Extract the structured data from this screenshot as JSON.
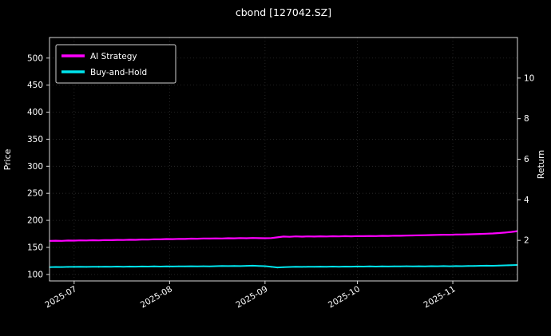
{
  "chart_data": {
    "type": "line",
    "title": "cbond [127042.SZ]",
    "ylabel_left": "Price",
    "ylabel_right": "Return",
    "xlim": [
      0,
      152
    ],
    "x_step": 2,
    "x_ticks": {
      "days": [
        8,
        39,
        70,
        100,
        131
      ],
      "labels": [
        "2025-07",
        "2025-08",
        "2025-09",
        "2025-10",
        "2025-11"
      ]
    },
    "price_ylim": [
      88,
      538
    ],
    "price_ticks": [
      100,
      150,
      200,
      250,
      300,
      350,
      400,
      450,
      500
    ],
    "return_ylim": [
      0,
      12
    ],
    "return_ticks": [
      2,
      4,
      6,
      8,
      10
    ],
    "grid": true,
    "legend_position": "upper-left",
    "series": [
      {
        "name": "AI Strategy",
        "color": "#ff00ff",
        "axis": "price",
        "values": [
          162.0,
          162.3,
          162.1,
          162.6,
          162.5,
          162.9,
          162.8,
          163.2,
          163.0,
          163.5,
          163.4,
          163.9,
          163.7,
          164.2,
          164.0,
          164.6,
          164.4,
          165.0,
          164.8,
          165.4,
          165.3,
          165.8,
          165.6,
          166.2,
          166.0,
          166.5,
          166.3,
          166.7,
          166.5,
          166.9,
          166.8,
          167.2,
          167.0,
          167.4,
          167.1,
          166.9,
          167.2,
          168.6,
          170.1,
          169.6,
          170.3,
          169.9,
          170.4,
          170.1,
          170.5,
          170.2,
          170.6,
          170.3,
          170.7,
          170.5,
          170.9,
          170.7,
          171.1,
          170.9,
          171.3,
          171.2,
          171.6,
          171.5,
          171.9,
          172.1,
          172.4,
          172.6,
          172.9,
          173.1,
          173.4,
          173.3,
          173.7,
          173.9,
          174.2,
          174.5,
          174.9,
          175.3,
          175.8,
          176.5,
          177.4,
          178.6,
          180.0
        ]
      },
      {
        "name": "Buy-and-Hold",
        "color": "#00e5ee",
        "axis": "price",
        "values": [
          113.5,
          113.8,
          113.6,
          114.0,
          113.9,
          114.2,
          114.0,
          114.3,
          114.1,
          114.4,
          114.2,
          114.5,
          114.3,
          114.6,
          114.4,
          114.7,
          114.5,
          114.8,
          114.6,
          114.9,
          114.7,
          115.0,
          114.8,
          115.1,
          114.9,
          115.2,
          115.0,
          115.3,
          115.6,
          115.4,
          115.8,
          115.5,
          115.9,
          116.2,
          115.8,
          115.3,
          114.2,
          112.9,
          113.4,
          113.8,
          114.1,
          113.9,
          114.3,
          114.1,
          114.4,
          114.2,
          114.5,
          114.3,
          114.6,
          114.4,
          114.7,
          114.5,
          114.8,
          114.6,
          114.9,
          114.7,
          115.0,
          114.8,
          115.1,
          114.9,
          115.2,
          115.0,
          115.3,
          115.1,
          115.4,
          115.2,
          115.5,
          115.3,
          115.6,
          115.8,
          116.0,
          116.2,
          116.0,
          116.4,
          116.7,
          117.0,
          117.5
        ]
      }
    ],
    "candles": {
      "color_up": "#00a651",
      "color_down": "#cf5030",
      "red_indices": [
        2,
        9,
        14,
        22,
        27,
        33,
        36,
        37,
        38,
        44,
        51,
        58,
        63,
        70,
        74
      ],
      "high": [
        115.0,
        114.6,
        115.3,
        114.9,
        116.1,
        114.8,
        115.4,
        115.0,
        116.0,
        115.2,
        115.1,
        115.5,
        114.9,
        116.2,
        115.0,
        115.6,
        115.2,
        116.3,
        115.1,
        115.7,
        115.3,
        116.4,
        115.2,
        115.8,
        115.4,
        116.5,
        115.3,
        115.9,
        116.8,
        115.6,
        117.0,
        115.8,
        117.2,
        117.5,
        116.4,
        116.0,
        115.2,
        114.0,
        114.6,
        115.0,
        115.4,
        114.9,
        115.6,
        115.1,
        115.8,
        115.2,
        115.9,
        115.3,
        116.0,
        115.4,
        116.1,
        115.5,
        116.2,
        115.6,
        116.3,
        115.7,
        116.4,
        115.8,
        116.5,
        115.9,
        116.6,
        116.0,
        116.7,
        116.1,
        116.8,
        116.2,
        116.9,
        116.3,
        117.0,
        117.2,
        117.4,
        117.6,
        117.3,
        117.8,
        118.1,
        118.4,
        118.9
      ],
      "low": [
        112.4,
        112.9,
        112.6,
        112.2,
        112.8,
        113.0,
        112.5,
        113.1,
        112.3,
        113.2,
        113.0,
        113.3,
        113.1,
        113.0,
        113.2,
        113.4,
        113.1,
        113.5,
        113.3,
        113.6,
        113.4,
        113.7,
        113.5,
        113.8,
        113.6,
        113.9,
        113.7,
        114.0,
        114.3,
        114.1,
        114.4,
        114.2,
        114.5,
        114.8,
        114.2,
        113.6,
        112.6,
        111.4,
        112.0,
        112.5,
        112.8,
        112.6,
        113.0,
        112.8,
        113.1,
        112.9,
        113.2,
        113.0,
        113.3,
        113.1,
        113.4,
        113.2,
        113.5,
        113.3,
        113.6,
        113.4,
        113.7,
        113.5,
        113.8,
        113.6,
        113.9,
        113.7,
        114.0,
        113.8,
        114.1,
        113.9,
        114.2,
        114.0,
        114.3,
        114.5,
        114.7,
        114.9,
        114.6,
        115.1,
        115.4,
        115.7,
        116.1
      ]
    }
  }
}
